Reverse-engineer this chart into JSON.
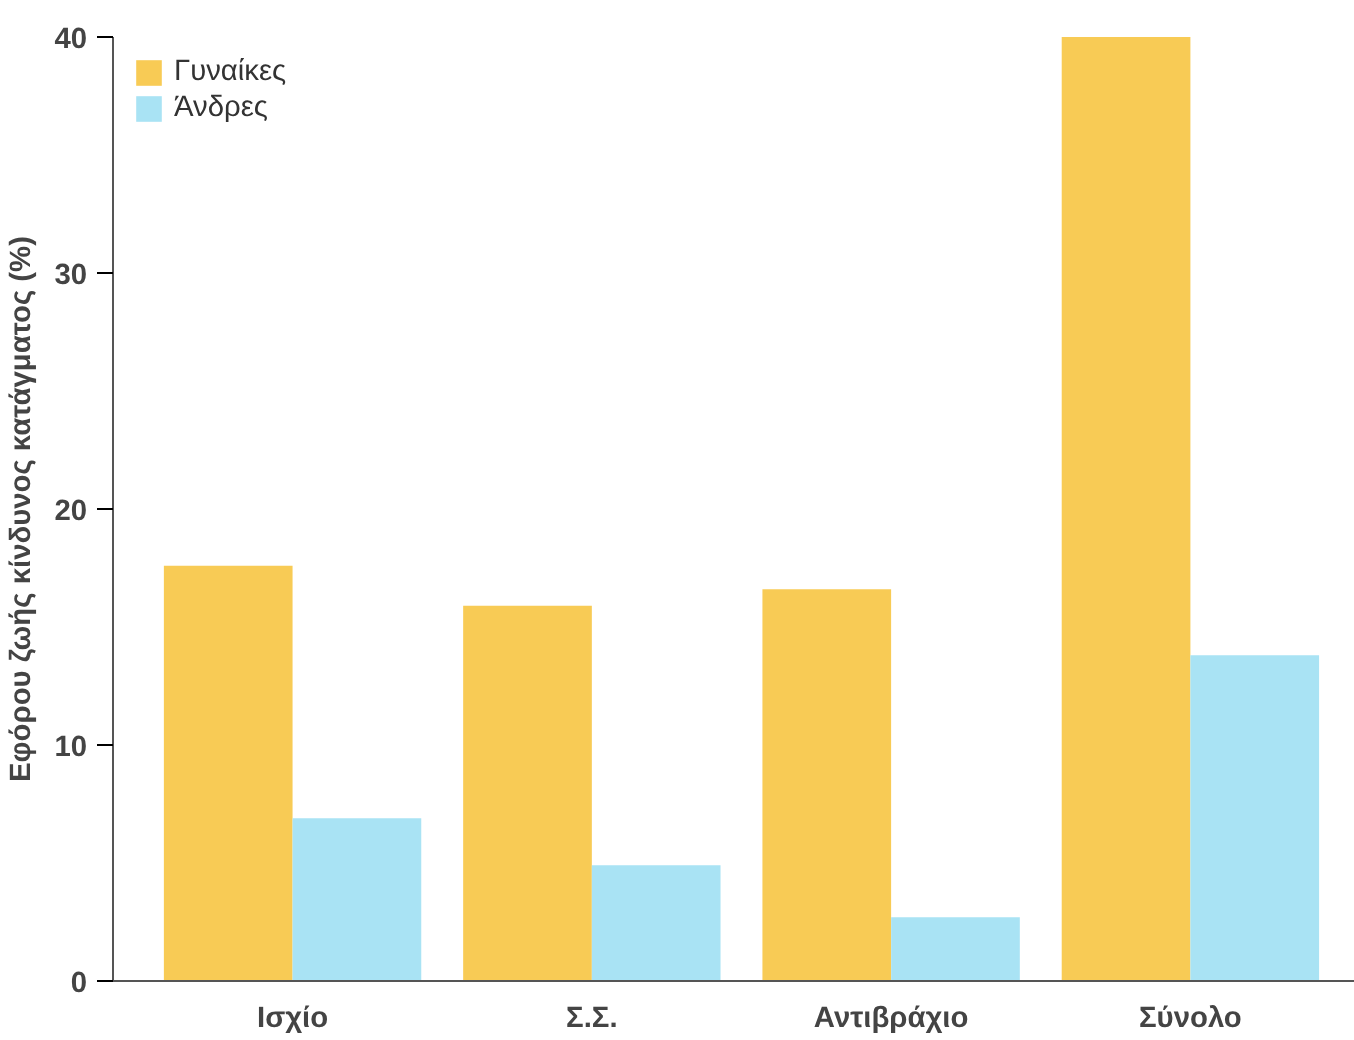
{
  "chart_data": {
    "type": "bar",
    "ylabel": "Εφόρου ζωής κίνδυνος κατάγματος (%)",
    "categories": [
      "Ισχίο",
      "Σ.Σ.",
      "Αντιβράχιο",
      "Σύνολο"
    ],
    "series": [
      {
        "name": "Γυναίκες",
        "color": "#f8cb55",
        "values": [
          17.6,
          15.9,
          16.6,
          40
        ]
      },
      {
        "name": "Άνδρες",
        "color": "#a9e3f4",
        "values": [
          6.9,
          4.9,
          2.7,
          13.8
        ]
      }
    ],
    "ylim": [
      0,
      40
    ],
    "yticks": [
      0,
      10,
      20,
      30,
      40
    ],
    "grid": false,
    "legend": "top left"
  }
}
